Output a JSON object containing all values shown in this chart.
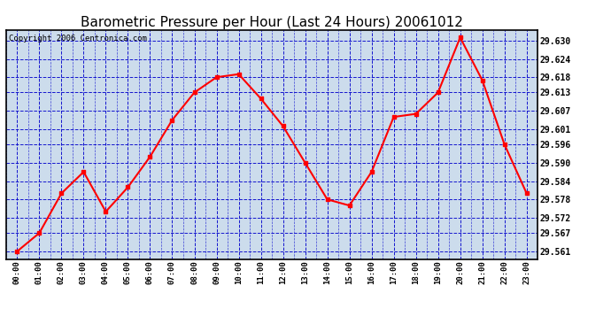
{
  "title": "Barometric Pressure per Hour (Last 24 Hours) 20061012",
  "copyright": "Copyright 2006 Centronica.com",
  "hours": [
    "00:00",
    "01:00",
    "02:00",
    "03:00",
    "04:00",
    "05:00",
    "06:00",
    "07:00",
    "08:00",
    "09:00",
    "10:00",
    "11:00",
    "12:00",
    "13:00",
    "14:00",
    "15:00",
    "16:00",
    "17:00",
    "18:00",
    "19:00",
    "20:00",
    "21:00",
    "22:00",
    "23:00"
  ],
  "values": [
    29.561,
    29.567,
    29.58,
    29.587,
    29.574,
    29.582,
    29.592,
    29.604,
    29.613,
    29.618,
    29.619,
    29.611,
    29.602,
    29.59,
    29.578,
    29.576,
    29.587,
    29.605,
    29.606,
    29.613,
    29.631,
    29.617,
    29.596,
    29.58
  ],
  "ylim_min": 29.5585,
  "ylim_max": 29.6335,
  "yticks": [
    29.561,
    29.567,
    29.572,
    29.578,
    29.584,
    29.59,
    29.596,
    29.601,
    29.607,
    29.613,
    29.618,
    29.624,
    29.63
  ],
  "line_color": "red",
  "marker_color": "red",
  "grid_color": "#0000cc",
  "fig_bg_color": "#ffffff",
  "plot_bg_color": "#ccdcec",
  "title_fontsize": 11,
  "copyright_fontsize": 6.5
}
